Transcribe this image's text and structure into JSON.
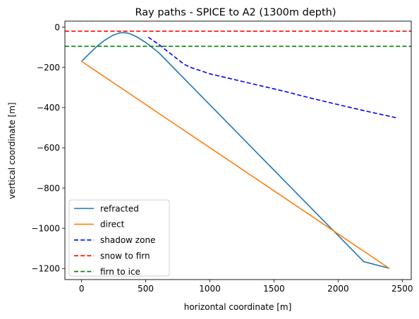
{
  "chart_data": {
    "type": "line",
    "title": "Ray paths - SPICE to A2 (1300m depth)",
    "xlabel": "horizontal coordinate [m]",
    "ylabel": "vertical coordinate [m]",
    "xlim": [
      -130,
      2570
    ],
    "ylim": [
      -1255,
      30
    ],
    "xticks": [
      0,
      500,
      1000,
      1500,
      2000,
      2500
    ],
    "xtick_labels": [
      "0",
      "500",
      "1000",
      "1500",
      "2000",
      "2500"
    ],
    "yticks": [
      0,
      -200,
      -400,
      -600,
      -800,
      -1000,
      -1200
    ],
    "ytick_labels": [
      "0",
      "−200",
      "−400",
      "−600",
      "−800",
      "−1000",
      "−1200"
    ],
    "grid": false,
    "legend_position": "lower-left",
    "series": [
      {
        "name": "refracted",
        "color": "#1f77b4",
        "style": "solid",
        "x": [
          0,
          60,
          120,
          180,
          240,
          300,
          330,
          370,
          430,
          500,
          600,
          800,
          1000,
          1200,
          1400,
          1600,
          1800,
          2000,
          2200,
          2400
        ],
        "y": [
          -170,
          -132,
          -95,
          -65,
          -42,
          -28,
          -27,
          -31,
          -48,
          -76,
          -126,
          -256,
          -386,
          -516,
          -646,
          -776,
          -906,
          -1036,
          -1166,
          -1199
        ]
      },
      {
        "name": "direct",
        "color": "#ff7f0e",
        "style": "solid",
        "x": [
          0,
          2400
        ],
        "y": [
          -170,
          -1200
        ]
      },
      {
        "name": "shadow zone",
        "color": "#0000ff",
        "style": "dashed",
        "x": [
          520,
          600,
          700,
          800,
          850,
          1000,
          1200,
          1400,
          1600,
          1800,
          2000,
          2200,
          2450
        ],
        "y": [
          -50,
          -85,
          -135,
          -185,
          -200,
          -232,
          -262,
          -292,
          -322,
          -355,
          -385,
          -415,
          -450
        ]
      },
      {
        "name": "snow to firn",
        "color": "#ff0000",
        "style": "dashed",
        "hline": -20
      },
      {
        "name": "firn to ice",
        "color": "#008000",
        "style": "dashed",
        "hline": -95
      }
    ]
  }
}
